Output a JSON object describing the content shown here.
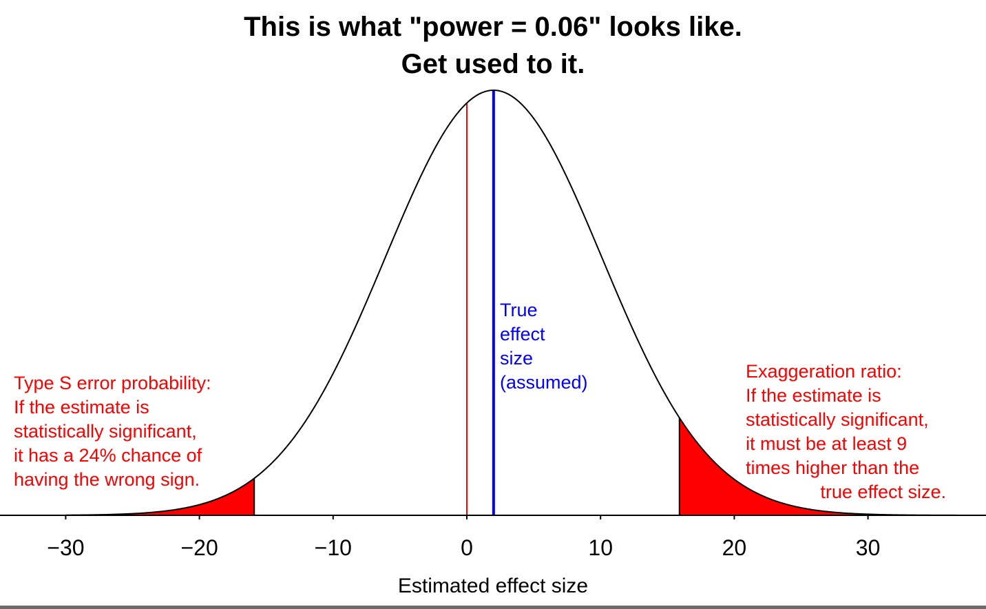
{
  "chart_data": {
    "type": "area",
    "title_lines": [
      "This is what \"power = 0.06\" looks like.",
      "Get used to it."
    ],
    "xlabel": "Estimated effect size",
    "ylabel": "",
    "xlim": [
      -30,
      38
    ],
    "xticks": [
      -30,
      -20,
      -10,
      0,
      10,
      20,
      30
    ],
    "xtick_labels": [
      "−30",
      "−20",
      "−10",
      "0",
      "10",
      "20",
      "30"
    ],
    "distribution": {
      "kind": "normal",
      "mean": 2,
      "sd": 8.1
    },
    "significance_threshold": 15.9,
    "true_effect_size": 2,
    "zero_line": 0,
    "annotations": {
      "left": [
        "Type S error probability:",
        "If the estimate is",
        "statistically significant,",
        "it has a 24% chance of",
        "having the wrong sign."
      ],
      "right": [
        "Exaggeration ratio:",
        "If the estimate is",
        "statistically significant,",
        "it must be at least 9",
        "times higher than the",
        "true effect size."
      ],
      "true_effect": [
        "True",
        "effect",
        "size",
        "(assumed)"
      ]
    },
    "grid": false,
    "colors": {
      "curve": "#000000",
      "tails": "#ff0000",
      "zero_line": "#ff0000",
      "true_effect_line": "#0000ff",
      "red_text": "#ff0000",
      "blue_text": "#0000ff"
    }
  }
}
